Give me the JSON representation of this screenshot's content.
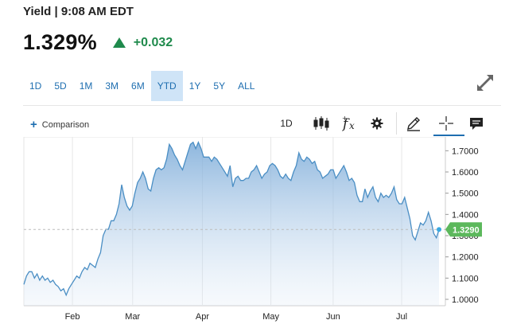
{
  "header": {
    "title": "Yield | 9:08 AM EDT"
  },
  "quote": {
    "price": "1.329%",
    "change": "+0.032",
    "up_color": "#1f8a4c"
  },
  "ranges": [
    {
      "label": "1D",
      "active": false
    },
    {
      "label": "5D",
      "active": false
    },
    {
      "label": "1M",
      "active": false
    },
    {
      "label": "3M",
      "active": false
    },
    {
      "label": "6M",
      "active": false
    },
    {
      "label": "YTD",
      "active": true
    },
    {
      "label": "1Y",
      "active": false
    },
    {
      "label": "5Y",
      "active": false
    },
    {
      "label": "ALL",
      "active": false
    }
  ],
  "toolbar": {
    "comparison_label": "Comparison",
    "interval_label": "1D",
    "icons": [
      "candlestick-icon",
      "function-icon",
      "gear-icon",
      "pencil-icon",
      "crosshair-icon",
      "annotation-icon"
    ],
    "expand_icon": "expand-icon"
  },
  "chart_data": {
    "type": "area",
    "x_ticks": [
      "Feb",
      "Mar",
      "Apr",
      "May",
      "Jun",
      "Jul"
    ],
    "y_ticks": [
      "1.7000",
      "1.6000",
      "1.5000",
      "1.4000",
      "1.3000",
      "1.2000",
      "1.1000",
      "1.0000"
    ],
    "ylim": [
      0.97,
      1.75
    ],
    "last_value_label": "1.3290",
    "last_value": 1.329,
    "line_color": "#4a8ec4",
    "badge_color": "#5cb85c",
    "series": [
      {
        "values": [
          1.07,
          1.11,
          1.13,
          1.13,
          1.1,
          1.12,
          1.09,
          1.11,
          1.09,
          1.1,
          1.08,
          1.09,
          1.07,
          1.06,
          1.04,
          1.05,
          1.02,
          1.05,
          1.07,
          1.09,
          1.11,
          1.1,
          1.13,
          1.15,
          1.14,
          1.17,
          1.16,
          1.15,
          1.19,
          1.22,
          1.3,
          1.33,
          1.33,
          1.37,
          1.37,
          1.4,
          1.45,
          1.54,
          1.48,
          1.44,
          1.42,
          1.44,
          1.5,
          1.55,
          1.57,
          1.6,
          1.57,
          1.52,
          1.51,
          1.57,
          1.61,
          1.62,
          1.61,
          1.62,
          1.66,
          1.73,
          1.71,
          1.68,
          1.66,
          1.63,
          1.61,
          1.65,
          1.69,
          1.73,
          1.74,
          1.71,
          1.74,
          1.71,
          1.67,
          1.67,
          1.67,
          1.65,
          1.67,
          1.66,
          1.64,
          1.62,
          1.6,
          1.58,
          1.63,
          1.53,
          1.57,
          1.58,
          1.56,
          1.56,
          1.57,
          1.57,
          1.6,
          1.61,
          1.63,
          1.6,
          1.57,
          1.59,
          1.6,
          1.63,
          1.64,
          1.63,
          1.61,
          1.58,
          1.57,
          1.59,
          1.57,
          1.56,
          1.6,
          1.63,
          1.69,
          1.66,
          1.65,
          1.67,
          1.66,
          1.64,
          1.65,
          1.61,
          1.6,
          1.57,
          1.58,
          1.59,
          1.61,
          1.61,
          1.57,
          1.59,
          1.61,
          1.63,
          1.6,
          1.56,
          1.57,
          1.55,
          1.49,
          1.46,
          1.46,
          1.52,
          1.48,
          1.51,
          1.53,
          1.48,
          1.46,
          1.5,
          1.48,
          1.49,
          1.48,
          1.5,
          1.53,
          1.47,
          1.45,
          1.45,
          1.48,
          1.43,
          1.38,
          1.3,
          1.28,
          1.32,
          1.36,
          1.35,
          1.37,
          1.41,
          1.37,
          1.31,
          1.29,
          1.329
        ]
      }
    ]
  }
}
